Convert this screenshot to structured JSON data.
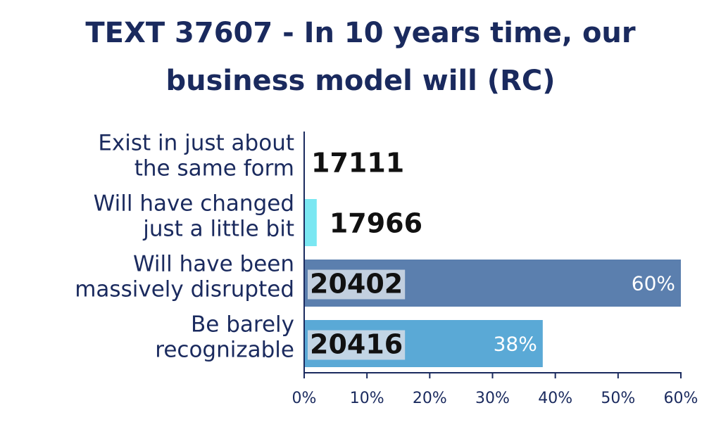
{
  "chart_data": {
    "type": "bar",
    "orientation": "horizontal",
    "title_lines": [
      "TEXT 37607 - In 10 years time, our",
      "business model will (RC)"
    ],
    "categories": [
      [
        "Exist in just about",
        "the same form"
      ],
      [
        "Will have changed",
        "just a little bit"
      ],
      [
        "Will have been",
        "massively disrupted"
      ],
      [
        "Be barely",
        "recognizable"
      ]
    ],
    "values": [
      0,
      2,
      60,
      38
    ],
    "value_labels": [
      "",
      "",
      "60%",
      "38%"
    ],
    "codes": [
      "17111",
      "17966",
      "20402",
      "20416"
    ],
    "bar_colors": [
      "#5fd3e8",
      "#7ae7f2",
      "#5b7fae",
      "#5aa9d6"
    ],
    "xlim": [
      0,
      60
    ],
    "x_ticks": [
      "0%",
      "10%",
      "20%",
      "30%",
      "40%",
      "50%",
      "60%"
    ],
    "grid": false,
    "text_color": "#1a2a5e"
  }
}
